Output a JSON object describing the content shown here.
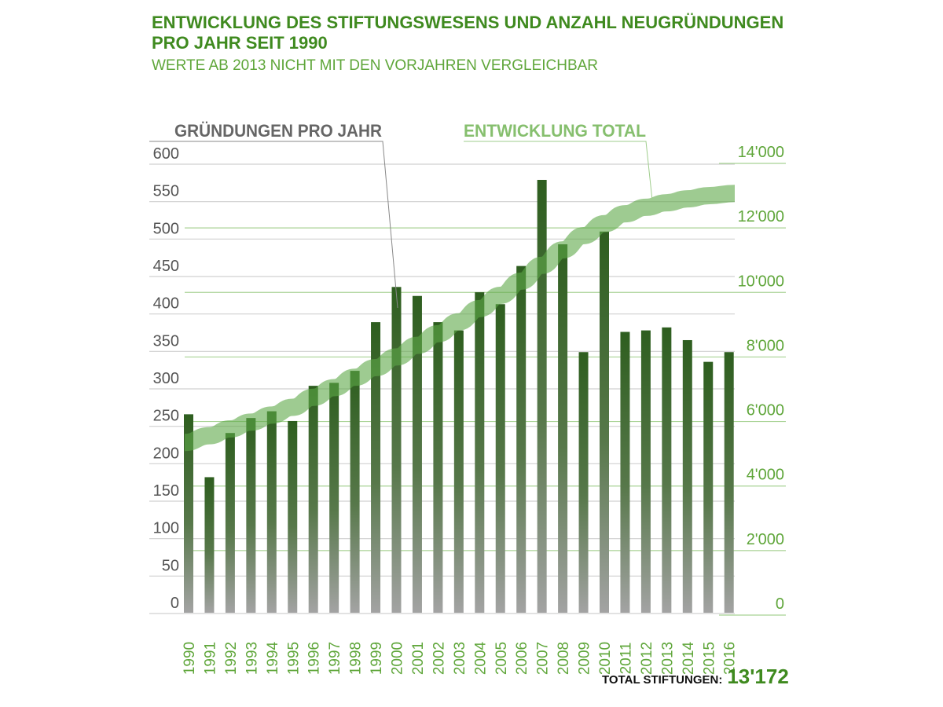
{
  "chart_data": {
    "type": "bar",
    "title": "ENTWICKLUNG DES STIFTUNGSWESENS UND ANZAHL NEUGRÜNDUNGEN PRO JAHR SEIT 1990",
    "subtitle": "WERTE AB 2013 NICHT MIT DEN VORJAHREN VERGLEICHBAR",
    "categories": [
      "1990",
      "1991",
      "1992",
      "1993",
      "1994",
      "1995",
      "1996",
      "1997",
      "1998",
      "1999",
      "2000",
      "2001",
      "2002",
      "2003",
      "2004",
      "2005",
      "2006",
      "2007",
      "2008",
      "2009",
      "2010",
      "2011",
      "2012",
      "2013",
      "2014",
      "2015",
      "2016"
    ],
    "series": [
      {
        "name": "GRÜNDUNGEN PRO JAHR",
        "type": "bar",
        "axis": "left",
        "values": [
          265,
          181,
          240,
          260,
          269,
          256,
          303,
          307,
          323,
          388,
          435,
          423,
          388,
          377,
          428,
          412,
          463,
          578,
          492,
          348,
          509,
          375,
          377,
          381,
          364,
          335,
          348
        ]
      },
      {
        "name": "ENTWICKLUNG TOTAL",
        "type": "line",
        "axis": "right",
        "values": [
          5350,
          5560,
          5770,
          5980,
          6200,
          6440,
          6750,
          7050,
          7370,
          7670,
          8000,
          8360,
          8720,
          9090,
          9500,
          9910,
          10350,
          10840,
          11320,
          11760,
          12130,
          12440,
          12640,
          12780,
          12900,
          13000,
          13070
        ]
      }
    ],
    "left_axis": {
      "ylim": [
        0,
        600
      ],
      "ticks": [
        "0",
        "50",
        "100",
        "150",
        "200",
        "250",
        "300",
        "350",
        "400",
        "450",
        "500",
        "550",
        "600"
      ]
    },
    "right_axis": {
      "ylim": [
        0,
        14000
      ],
      "ticks": [
        "0",
        "2'000",
        "4'000",
        "6'000",
        "8'000",
        "10'000",
        "12'000",
        "14'000"
      ]
    },
    "grid": true,
    "colors": {
      "bar_top": "#2e5e1f",
      "bar_bottom": "#a3a3a3",
      "band": "#7fb96a",
      "title": "#3f8a1f",
      "axis_right": "#5fa63a"
    },
    "total_label": "TOTAL STIFTUNGEN:",
    "total_value": "13'172"
  }
}
